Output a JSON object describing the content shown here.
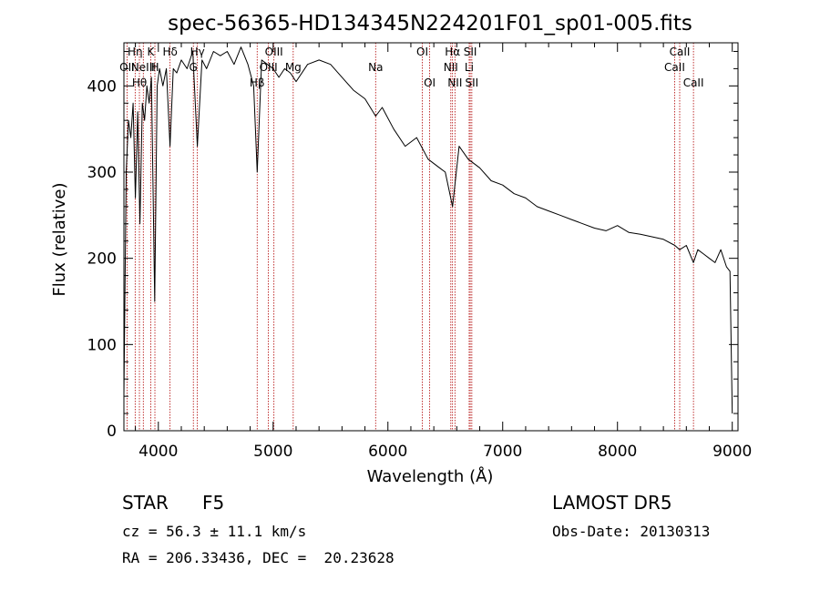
{
  "chart_data": {
    "type": "line",
    "title": "spec-56365-HD134345N224201F01_sp01-005.fits",
    "xlabel": "Wavelength (Å)",
    "ylabel": "Flux (relative)",
    "xlim": [
      3700,
      9050
    ],
    "ylim": [
      0,
      450
    ],
    "xticks": [
      4000,
      5000,
      6000,
      7000,
      8000,
      9000
    ],
    "yticks": [
      0,
      100,
      200,
      300,
      400
    ],
    "grid": false,
    "series": [
      {
        "x": [
          3700,
          3720,
          3740,
          3760,
          3780,
          3800,
          3820,
          3840,
          3860,
          3880,
          3900,
          3920,
          3940,
          3968,
          3990,
          4010,
          4040,
          4070,
          4102,
          4130,
          4160,
          4200,
          4250,
          4300,
          4340,
          4380,
          4420,
          4480,
          4540,
          4600,
          4660,
          4720,
          4780,
          4830,
          4861,
          4900,
          4950,
          5000,
          5050,
          5100,
          5150,
          5200,
          5300,
          5400,
          5500,
          5600,
          5700,
          5800,
          5893,
          5950,
          6050,
          6150,
          6250,
          6350,
          6450,
          6500,
          6563,
          6620,
          6700,
          6800,
          6900,
          7000,
          7100,
          7200,
          7300,
          7400,
          7500,
          7600,
          7700,
          7800,
          7900,
          8000,
          8100,
          8200,
          8300,
          8400,
          8500,
          8542,
          8600,
          8662,
          8700,
          8750,
          8800,
          8850,
          8900,
          8950,
          8980,
          9000
        ],
        "y": [
          40,
          300,
          360,
          340,
          380,
          270,
          370,
          240,
          380,
          360,
          400,
          380,
          410,
          150,
          400,
          420,
          400,
          420,
          330,
          420,
          415,
          430,
          420,
          440,
          330,
          430,
          420,
          440,
          435,
          440,
          425,
          445,
          425,
          400,
          300,
          430,
          425,
          420,
          410,
          420,
          415,
          405,
          425,
          430,
          425,
          410,
          395,
          385,
          365,
          375,
          350,
          330,
          340,
          315,
          305,
          300,
          260,
          330,
          315,
          305,
          290,
          285,
          275,
          270,
          260,
          255,
          250,
          245,
          240,
          235,
          232,
          238,
          230,
          228,
          225,
          222,
          215,
          210,
          215,
          195,
          210,
          205,
          200,
          195,
          210,
          190,
          185,
          20
        ]
      }
    ],
    "spectral_lines": [
      {
        "wavelength": 3727,
        "label": "OII",
        "row": 1
      },
      {
        "wavelength": 3798,
        "label": "Hη",
        "row": 0
      },
      {
        "wavelength": 3835,
        "label": "Hθ",
        "row": 2
      },
      {
        "wavelength": 3869,
        "label": "NeIII",
        "row": 1
      },
      {
        "wavelength": 3934,
        "label": "K",
        "row": 0
      },
      {
        "wavelength": 3970,
        "label": "H",
        "row": 1
      },
      {
        "wavelength": 4102,
        "label": "Hδ",
        "row": 0
      },
      {
        "wavelength": 4305,
        "label": "G",
        "row": 1
      },
      {
        "wavelength": 4340,
        "label": "Hγ",
        "row": 0
      },
      {
        "wavelength": 4861,
        "label": "Hβ",
        "row": 2
      },
      {
        "wavelength": 4959,
        "label": "OIII",
        "row": 1
      },
      {
        "wavelength": 5007,
        "label": "OIII",
        "row": 0
      },
      {
        "wavelength": 5175,
        "label": "Mg",
        "row": 1
      },
      {
        "wavelength": 5893,
        "label": "Na",
        "row": 1
      },
      {
        "wavelength": 6300,
        "label": "OI",
        "row": 0
      },
      {
        "wavelength": 6364,
        "label": "OI",
        "row": 2
      },
      {
        "wavelength": 6548,
        "label": "NII",
        "row": 1
      },
      {
        "wavelength": 6563,
        "label": "Hα",
        "row": 0
      },
      {
        "wavelength": 6584,
        "label": "NII",
        "row": 2
      },
      {
        "wavelength": 6708,
        "label": "Li",
        "row": 1
      },
      {
        "wavelength": 6717,
        "label": "SII",
        "row": 0
      },
      {
        "wavelength": 6731,
        "label": "SII",
        "row": 2
      },
      {
        "wavelength": 8498,
        "label": "CaII",
        "row": 1
      },
      {
        "wavelength": 8542,
        "label": "CaII",
        "row": 0
      },
      {
        "wavelength": 8662,
        "label": "CaII",
        "row": 2
      }
    ]
  },
  "info": {
    "class_label": "STAR",
    "subclass": "F5",
    "survey": "LAMOST DR5",
    "velocity": "cz = 56.3 ± 11.1 km/s",
    "obs_date": "Obs-Date: 20130313",
    "coords": "RA = 206.33436, DEC =  20.23628"
  }
}
